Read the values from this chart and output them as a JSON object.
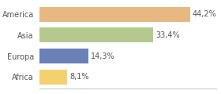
{
  "categories": [
    "Africa",
    "Europa",
    "Asia",
    "America"
  ],
  "values": [
    44.2,
    33.4,
    14.3,
    8.1
  ],
  "labels": [
    "44,2%",
    "33,4%",
    "14,3%",
    "8,1%"
  ],
  "bar_colors": [
    "#e8b882",
    "#b5c98e",
    "#6b80b8",
    "#f5d06e"
  ],
  "background_color": "#ffffff",
  "xlim": [
    0,
    52
  ],
  "label_fontsize": 7.0,
  "tick_fontsize": 7.0,
  "bar_height": 0.72
}
